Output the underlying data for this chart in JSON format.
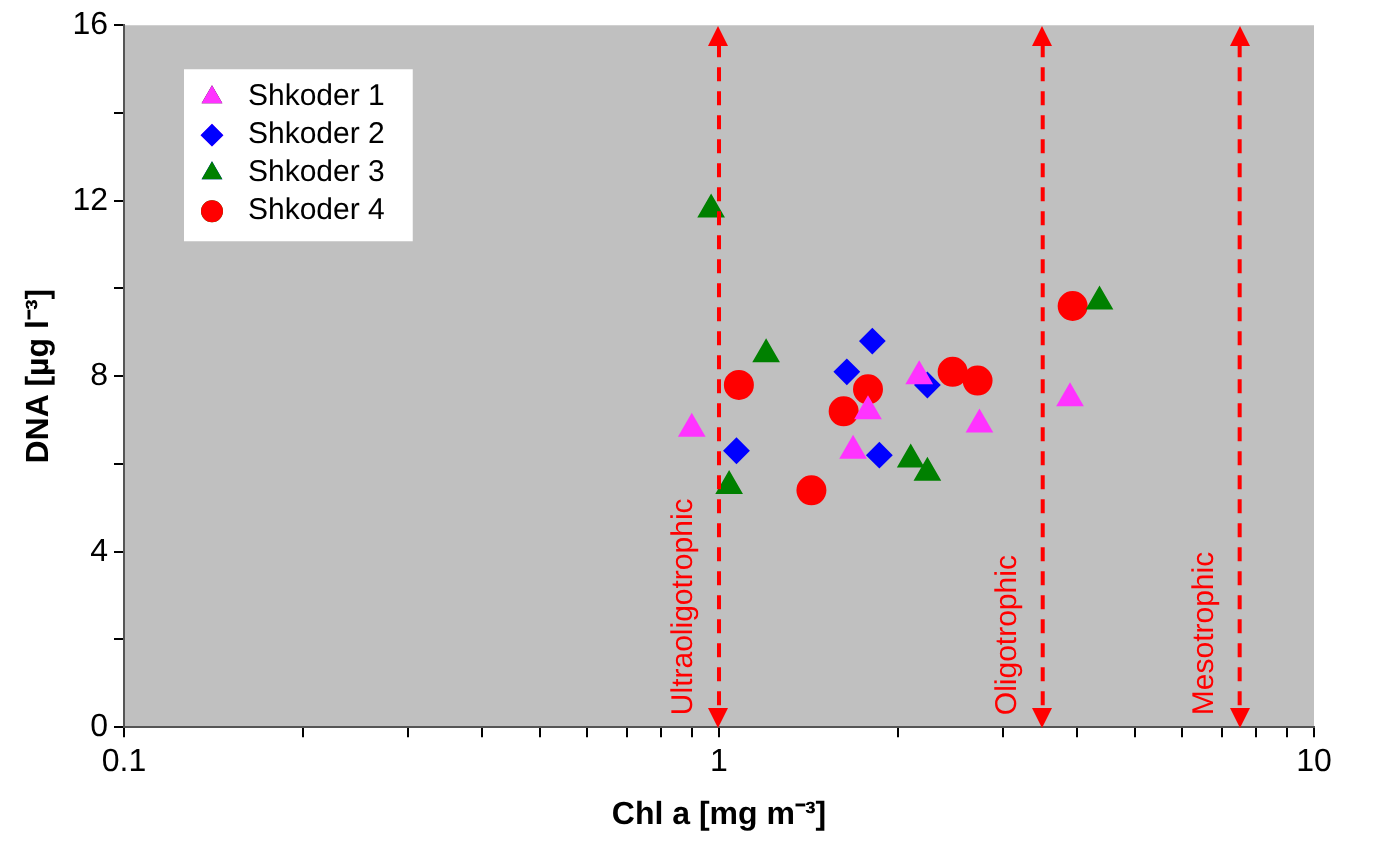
{
  "chart_data": {
    "type": "scatter",
    "xlabel": "Chl a [mg m⁻³]",
    "ylabel": "DNA [µg l⁻³]",
    "log": "x",
    "xlim": [
      0.1,
      10
    ],
    "xticks": [
      0.1,
      {
        "value": 0.2,
        "label": null
      },
      {
        "value": 0.3,
        "label": null
      },
      {
        "value": 0.4,
        "label": null
      },
      {
        "value": 0.5,
        "label": null
      },
      {
        "value": 0.6,
        "label": null
      },
      {
        "value": 0.7,
        "label": null
      },
      {
        "value": 0.8,
        "label": null
      },
      {
        "value": 0.9,
        "label": null
      },
      1,
      {
        "value": 2,
        "label": null
      },
      {
        "value": 3,
        "label": null
      },
      {
        "value": 4,
        "label": null
      },
      {
        "value": 5,
        "label": null
      },
      {
        "value": 6,
        "label": null
      },
      {
        "value": 7,
        "label": null
      },
      {
        "value": 8,
        "label": null
      },
      {
        "value": 9,
        "label": null
      },
      10
    ],
    "ylim": [
      0,
      16
    ],
    "yticks": [
      0,
      {
        "value": 2,
        "label": null
      },
      4,
      {
        "value": 6,
        "label": null
      },
      8,
      {
        "value": 10,
        "label": null
      },
      12,
      {
        "value": 14,
        "label": null
      },
      16
    ],
    "grid": false,
    "legend": "top left",
    "series": [
      {
        "name": "Shkoder 1",
        "color": "#ff33ff",
        "marker": "triangle",
        "x": [
          0.9,
          1.68,
          1.78,
          2.17,
          2.74,
          3.89
        ],
        "values": [
          6.8,
          6.3,
          7.2,
          8.0,
          6.9,
          7.5
        ]
      },
      {
        "name": "Shkoder 2",
        "color": "#0000ff",
        "marker": "diamond",
        "x": [
          1.07,
          1.64,
          1.81,
          1.86,
          2.24
        ],
        "values": [
          6.3,
          8.1,
          8.8,
          6.2,
          7.8
        ]
      },
      {
        "name": "Shkoder 3",
        "color": "#008000",
        "marker": "triangle",
        "x": [
          0.97,
          1.2,
          1.04,
          2.1,
          2.24,
          4.36
        ],
        "values": [
          11.8,
          8.5,
          5.5,
          6.1,
          5.8,
          9.7
        ]
      },
      {
        "name": "Shkoder 4",
        "color": "#ff0000",
        "marker": "circle",
        "x": [
          1.08,
          1.43,
          1.62,
          1.78,
          2.47,
          2.72,
          3.93
        ],
        "values": [
          7.8,
          5.4,
          7.2,
          7.7,
          8.1,
          7.9,
          9.6
        ]
      }
    ],
    "ref_lines": [
      {
        "axis": "x",
        "value": 1,
        "label": "Ultraoligotrophic",
        "color": "#ff0000",
        "line_style": "dashed"
      },
      {
        "axis": "x",
        "value": 3.5,
        "label": "Oligotrophic",
        "color": "#ff0000",
        "line_style": "dashed"
      },
      {
        "axis": "x",
        "value": 7.5,
        "label": "Mesotrophic",
        "color": "#ff0000",
        "line_style": "dashed"
      }
    ]
  }
}
